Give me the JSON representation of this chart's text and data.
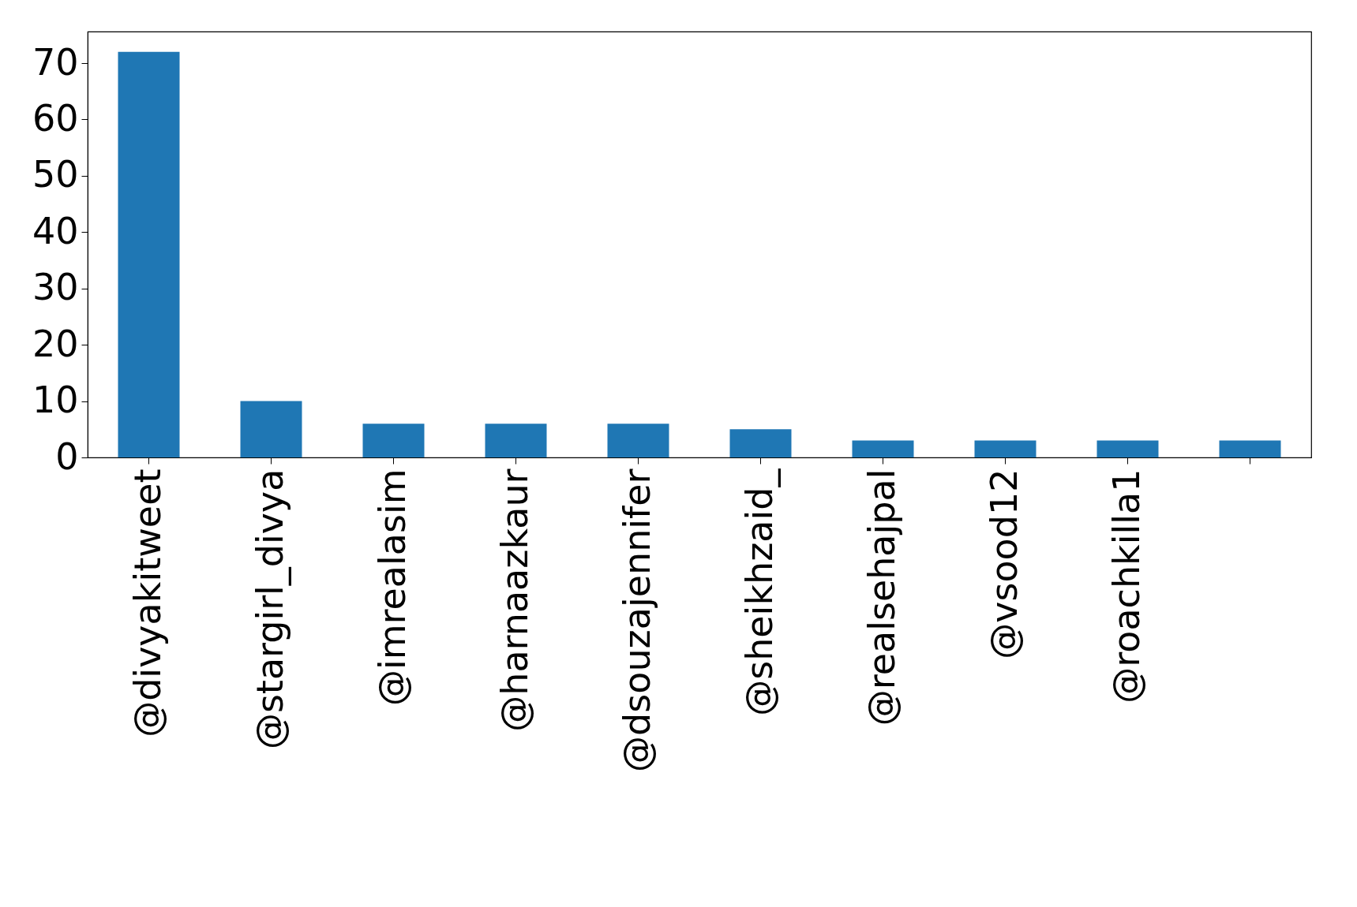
{
  "chart_data": {
    "type": "bar",
    "categories": [
      "@divyakitweet",
      "@stargirl_divya",
      "@imrealasim",
      "@harnaazkaur",
      "@dsouzajennifer",
      "@sheikhzaid_",
      "@realsehajpal",
      "@vsood12",
      "@roachkilla1",
      null
    ],
    "values": [
      72,
      10,
      6,
      6,
      6,
      5,
      3,
      3,
      3,
      3
    ],
    "color": "#1f77b4",
    "ylim": [
      0,
      75.6
    ],
    "yticks": [
      0,
      10,
      20,
      30,
      40,
      50,
      60,
      70
    ],
    "grid": false
  }
}
